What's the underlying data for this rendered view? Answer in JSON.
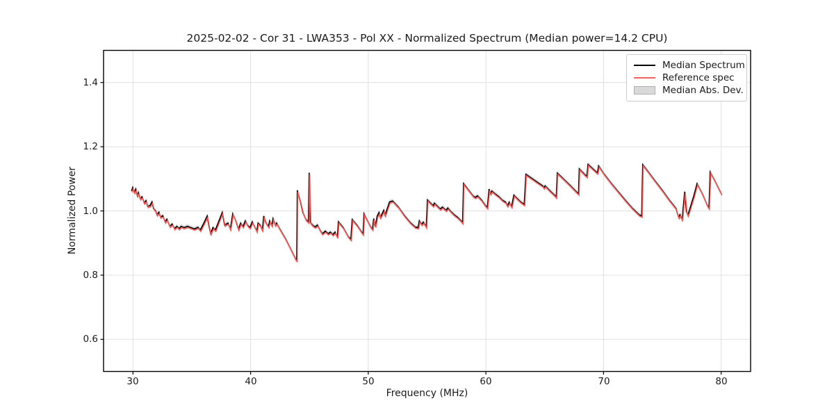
{
  "title": "2025-02-02 - Cor 31 - LWA353 - Pol XX - Normalized Spectrum (Median power=14.2 CPU)",
  "axes": {
    "xlabel": "Frequency (MHz)",
    "ylabel": "Normalized Power",
    "xticks": [
      "30",
      "40",
      "50",
      "60",
      "70",
      "80"
    ],
    "yticks": [
      "0.6",
      "0.8",
      "1.0",
      "1.2",
      "1.4"
    ],
    "grid_color": "#e0e0e0",
    "spine_color": "#000000"
  },
  "legend": {
    "entries": [
      {
        "label": "Median Spectrum",
        "type": "line",
        "color": "#000000"
      },
      {
        "label": "Reference spec",
        "type": "line",
        "color": "#f26060"
      },
      {
        "label": "Median Abs. Dev.",
        "type": "patch",
        "color": "#d9d9d9",
        "edge": "#b0b0b0"
      }
    ]
  },
  "chart_data": {
    "type": "line",
    "title": "2025-02-02 - Cor 31 - LWA353 - Pol XX - Normalized Spectrum (Median power=14.2 CPU)",
    "xlabel": "Frequency (MHz)",
    "ylabel": "Normalized Power",
    "xlim": [
      27.5,
      82.5
    ],
    "ylim": [
      0.5,
      1.5
    ],
    "xtick_values": [
      30,
      40,
      50,
      60,
      70,
      80
    ],
    "ytick_values": [
      0.6,
      0.8,
      1.0,
      1.2,
      1.4
    ],
    "grid": true,
    "legend_position": "upper right",
    "series": [
      {
        "name": "Median Spectrum",
        "color": "#000000",
        "points": [
          [
            29.88,
            1.062
          ],
          [
            29.98,
            1.073
          ],
          [
            30.12,
            1.058
          ],
          [
            30.24,
            1.068
          ],
          [
            30.37,
            1.048
          ],
          [
            30.47,
            1.057
          ],
          [
            30.63,
            1.038
          ],
          [
            30.77,
            1.044
          ],
          [
            30.96,
            1.025
          ],
          [
            31.11,
            1.032
          ],
          [
            31.26,
            1.014
          ],
          [
            31.46,
            1.017
          ],
          [
            31.62,
            1.028
          ],
          [
            31.76,
            1.007
          ],
          [
            31.95,
            0.999
          ],
          [
            32.05,
            0.988
          ],
          [
            32.21,
            0.996
          ],
          [
            32.35,
            0.981
          ],
          [
            32.54,
            0.985
          ],
          [
            32.74,
            0.966
          ],
          [
            32.88,
            0.974
          ],
          [
            33.14,
            0.952
          ],
          [
            33.33,
            0.959
          ],
          [
            33.53,
            0.945
          ],
          [
            33.73,
            0.952
          ],
          [
            33.92,
            0.945
          ],
          [
            34.1,
            0.952
          ],
          [
            34.34,
            0.948
          ],
          [
            34.63,
            0.952
          ],
          [
            34.93,
            0.948
          ],
          [
            35.22,
            0.944
          ],
          [
            35.52,
            0.949
          ],
          [
            35.72,
            0.94
          ],
          [
            36.0,
            0.96
          ],
          [
            36.31,
            0.984
          ],
          [
            36.45,
            0.955
          ],
          [
            36.61,
            0.93
          ],
          [
            36.8,
            0.948
          ],
          [
            37.0,
            0.94
          ],
          [
            37.3,
            0.968
          ],
          [
            37.59,
            0.995
          ],
          [
            37.79,
            0.956
          ],
          [
            38.08,
            0.962
          ],
          [
            38.28,
            0.944
          ],
          [
            38.48,
            0.991
          ],
          [
            38.78,
            0.966
          ],
          [
            38.97,
            0.943
          ],
          [
            39.15,
            0.962
          ],
          [
            39.35,
            0.951
          ],
          [
            39.55,
            0.969
          ],
          [
            39.74,
            0.955
          ],
          [
            39.94,
            0.948
          ],
          [
            40.14,
            0.966
          ],
          [
            40.34,
            0.951
          ],
          [
            40.53,
            0.937
          ],
          [
            40.63,
            0.962
          ],
          [
            40.83,
            0.955
          ],
          [
            41.0,
            0.941
          ],
          [
            41.12,
            0.984
          ],
          [
            41.32,
            0.962
          ],
          [
            41.52,
            0.951
          ],
          [
            41.62,
            0.969
          ],
          [
            41.81,
            0.955
          ],
          [
            41.91,
            0.976
          ],
          [
            42.11,
            0.956
          ],
          [
            42.21,
            0.962
          ],
          [
            42.41,
            0.948
          ],
          [
            42.7,
            0.93
          ],
          [
            43.0,
            0.911
          ],
          [
            43.3,
            0.889
          ],
          [
            43.59,
            0.868
          ],
          [
            43.85,
            0.848
          ],
          [
            43.92,
            0.846
          ],
          [
            43.97,
            1.064
          ],
          [
            44.2,
            1.034
          ],
          [
            44.45,
            0.995
          ],
          [
            44.69,
            0.974
          ],
          [
            44.91,
            0.965
          ],
          [
            44.98,
            1.119
          ],
          [
            45.08,
            0.964
          ],
          [
            45.28,
            0.955
          ],
          [
            45.48,
            0.95
          ],
          [
            45.68,
            0.956
          ],
          [
            45.9,
            0.94
          ],
          [
            46.09,
            0.929
          ],
          [
            46.35,
            0.937
          ],
          [
            46.58,
            0.929
          ],
          [
            46.78,
            0.934
          ],
          [
            46.98,
            0.926
          ],
          [
            47.18,
            0.934
          ],
          [
            47.38,
            0.918
          ],
          [
            47.46,
            0.966
          ],
          [
            47.87,
            0.948
          ],
          [
            48.3,
            0.92
          ],
          [
            48.52,
            0.911
          ],
          [
            48.64,
            0.973
          ],
          [
            49.05,
            0.955
          ],
          [
            49.45,
            0.933
          ],
          [
            49.56,
            0.928
          ],
          [
            49.64,
            0.991
          ],
          [
            49.94,
            0.969
          ],
          [
            50.24,
            0.948
          ],
          [
            50.36,
            0.943
          ],
          [
            50.46,
            0.976
          ],
          [
            50.6,
            0.952
          ],
          [
            50.76,
            0.984
          ],
          [
            50.92,
            0.995
          ],
          [
            51.03,
            0.98
          ],
          [
            51.32,
            1.002
          ],
          [
            51.43,
            0.987
          ],
          [
            51.81,
            1.028
          ],
          [
            52.07,
            1.031
          ],
          [
            52.56,
            1.012
          ],
          [
            53.06,
            0.986
          ],
          [
            53.56,
            0.964
          ],
          [
            53.98,
            0.95
          ],
          [
            54.24,
            0.948
          ],
          [
            54.34,
            0.969
          ],
          [
            54.54,
            0.958
          ],
          [
            54.68,
            0.965
          ],
          [
            54.93,
            0.95
          ],
          [
            55.03,
            1.034
          ],
          [
            55.33,
            1.023
          ],
          [
            55.52,
            1.016
          ],
          [
            55.62,
            1.024
          ],
          [
            55.92,
            1.013
          ],
          [
            56.12,
            1.006
          ],
          [
            56.3,
            1.012
          ],
          [
            56.61,
            1.002
          ],
          [
            56.76,
            1.009
          ],
          [
            57.05,
            0.997
          ],
          [
            57.3,
            0.988
          ],
          [
            57.59,
            0.98
          ],
          [
            57.89,
            0.969
          ],
          [
            58.02,
            0.963
          ],
          [
            58.1,
            1.085
          ],
          [
            58.5,
            1.066
          ],
          [
            58.9,
            1.047
          ],
          [
            59.1,
            1.042
          ],
          [
            59.28,
            1.047
          ],
          [
            59.6,
            1.035
          ],
          [
            59.95,
            1.017
          ],
          [
            60.12,
            1.01
          ],
          [
            60.27,
            1.068
          ],
          [
            60.4,
            1.054
          ],
          [
            60.5,
            1.062
          ],
          [
            60.79,
            1.053
          ],
          [
            61.08,
            1.045
          ],
          [
            61.38,
            1.034
          ],
          [
            61.68,
            1.027
          ],
          [
            61.83,
            1.016
          ],
          [
            61.98,
            1.027
          ],
          [
            62.18,
            1.013
          ],
          [
            62.38,
            1.049
          ],
          [
            62.67,
            1.038
          ],
          [
            62.96,
            1.028
          ],
          [
            63.26,
            1.02
          ],
          [
            63.4,
            1.114
          ],
          [
            63.95,
            1.1
          ],
          [
            64.54,
            1.085
          ],
          [
            64.83,
            1.078
          ],
          [
            64.93,
            1.072
          ],
          [
            65.03,
            1.078
          ],
          [
            65.43,
            1.063
          ],
          [
            65.83,
            1.049
          ],
          [
            65.98,
            1.043
          ],
          [
            66.07,
            1.118
          ],
          [
            66.61,
            1.099
          ],
          [
            67.2,
            1.078
          ],
          [
            67.7,
            1.059
          ],
          [
            67.87,
            1.053
          ],
          [
            67.94,
            1.131
          ],
          [
            68.38,
            1.114
          ],
          [
            68.58,
            1.107
          ],
          [
            68.68,
            1.145
          ],
          [
            69.27,
            1.125
          ],
          [
            69.48,
            1.118
          ],
          [
            69.58,
            1.14
          ],
          [
            70.06,
            1.114
          ],
          [
            70.65,
            1.086
          ],
          [
            71.24,
            1.06
          ],
          [
            71.83,
            1.034
          ],
          [
            72.43,
            1.009
          ],
          [
            73.02,
            0.988
          ],
          [
            73.24,
            0.984
          ],
          [
            73.33,
            1.144
          ],
          [
            73.81,
            1.121
          ],
          [
            74.4,
            1.092
          ],
          [
            74.99,
            1.064
          ],
          [
            75.58,
            1.034
          ],
          [
            76.17,
            1.007
          ],
          [
            76.3,
            0.99
          ],
          [
            76.4,
            0.98
          ],
          [
            76.5,
            0.988
          ],
          [
            76.68,
            0.973
          ],
          [
            76.9,
            1.06
          ],
          [
            77.05,
            0.998
          ],
          [
            77.17,
            0.987
          ],
          [
            77.4,
            1.014
          ],
          [
            77.7,
            1.05
          ],
          [
            77.95,
            1.085
          ],
          [
            78.44,
            1.05
          ],
          [
            78.86,
            1.014
          ],
          [
            78.96,
            1.009
          ],
          [
            79.07,
            1.121
          ],
          [
            79.53,
            1.089
          ],
          [
            80.02,
            1.053
          ]
        ]
      },
      {
        "name": "Reference spec",
        "color": "#f26060",
        "derived_from": "Median Spectrum",
        "value_offset": -0.004,
        "freq_offset": 0.05
      },
      {
        "name": "Median Abs. Dev.",
        "color": "#d9d9d9",
        "derived_from": "Median Spectrum",
        "band_halfwidth": 0.007
      }
    ]
  }
}
